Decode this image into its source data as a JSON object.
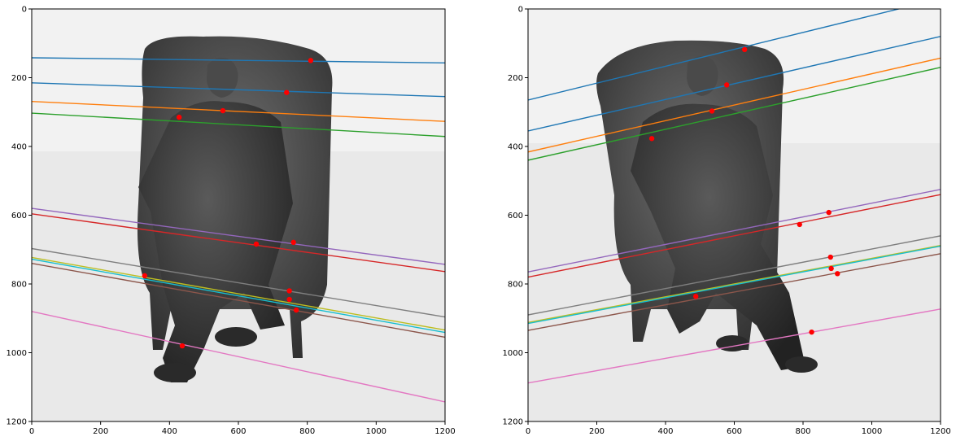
{
  "chart_data": [
    {
      "type": "scatter",
      "subtype": "image-with-epipolar-lines",
      "title": "",
      "xlabel": "",
      "ylabel": "",
      "xlim": [
        0,
        1200
      ],
      "ylim": [
        1200,
        0
      ],
      "xticks": [
        "0",
        "200",
        "400",
        "600",
        "800",
        "1000",
        "1200"
      ],
      "yticks": [
        "0",
        "200",
        "400",
        "600",
        "800",
        "1000",
        "1200"
      ],
      "background_image": "grayscale photo of a figurine seated in a wing-back armchair",
      "grid": false,
      "legend": "none",
      "lines": [
        {
          "color": "#1f77b4",
          "y_at_x0": 142,
          "y_at_x1200": 157
        },
        {
          "color": "#1f77b4",
          "y_at_x0": 215,
          "y_at_x1200": 255
        },
        {
          "color": "#ff7f0e",
          "y_at_x0": 269,
          "y_at_x1200": 327
        },
        {
          "color": "#2ca02c",
          "y_at_x0": 303,
          "y_at_x1200": 371
        },
        {
          "color": "#9467bd",
          "y_at_x0": 580,
          "y_at_x1200": 743
        },
        {
          "color": "#d62728",
          "y_at_x0": 596,
          "y_at_x1200": 764
        },
        {
          "color": "#7f7f7f",
          "y_at_x0": 697,
          "y_at_x1200": 896
        },
        {
          "color": "#bcbd22",
          "y_at_x0": 723,
          "y_at_x1200": 934
        },
        {
          "color": "#17becf",
          "y_at_x0": 728,
          "y_at_x1200": 941
        },
        {
          "color": "#8c564b",
          "y_at_x0": 740,
          "y_at_x1200": 955
        },
        {
          "color": "#e377c2",
          "y_at_x0": 880,
          "y_at_x1200": 1143
        }
      ],
      "points": [
        {
          "x": 810,
          "y": 150
        },
        {
          "x": 740,
          "y": 243
        },
        {
          "x": 428,
          "y": 315
        },
        {
          "x": 555,
          "y": 296
        },
        {
          "x": 652,
          "y": 684
        },
        {
          "x": 760,
          "y": 679
        },
        {
          "x": 328,
          "y": 776
        },
        {
          "x": 748,
          "y": 820
        },
        {
          "x": 748,
          "y": 845
        },
        {
          "x": 768,
          "y": 876
        },
        {
          "x": 437,
          "y": 980
        }
      ]
    },
    {
      "type": "scatter",
      "subtype": "image-with-epipolar-lines",
      "title": "",
      "xlabel": "",
      "ylabel": "",
      "xlim": [
        0,
        1200
      ],
      "ylim": [
        1200,
        0
      ],
      "xticks": [
        "0",
        "200",
        "400",
        "600",
        "800",
        "1000",
        "1200"
      ],
      "yticks": [
        "0",
        "200",
        "400",
        "600",
        "800",
        "1000",
        "1200"
      ],
      "background_image": "grayscale photo of the same figurine seated in a wing-back armchair, rotated view",
      "grid": false,
      "legend": "none",
      "lines": [
        {
          "color": "#1f77b4",
          "y_at_x0": 265,
          "y_at_x1200": -30
        },
        {
          "color": "#1f77b4",
          "y_at_x0": 355,
          "y_at_x1200": 80
        },
        {
          "color": "#ff7f0e",
          "y_at_x0": 416,
          "y_at_x1200": 143
        },
        {
          "color": "#2ca02c",
          "y_at_x0": 440,
          "y_at_x1200": 170
        },
        {
          "color": "#9467bd",
          "y_at_x0": 765,
          "y_at_x1200": 525
        },
        {
          "color": "#d62728",
          "y_at_x0": 780,
          "y_at_x1200": 540
        },
        {
          "color": "#7f7f7f",
          "y_at_x0": 890,
          "y_at_x1200": 660
        },
        {
          "color": "#bcbd22",
          "y_at_x0": 912,
          "y_at_x1200": 688
        },
        {
          "color": "#17becf",
          "y_at_x0": 915,
          "y_at_x1200": 690
        },
        {
          "color": "#8c564b",
          "y_at_x0": 935,
          "y_at_x1200": 712
        },
        {
          "color": "#e377c2",
          "y_at_x0": 1088,
          "y_at_x1200": 873
        }
      ],
      "points": [
        {
          "x": 630,
          "y": 118
        },
        {
          "x": 578,
          "y": 221
        },
        {
          "x": 360,
          "y": 377
        },
        {
          "x": 535,
          "y": 297
        },
        {
          "x": 790,
          "y": 627
        },
        {
          "x": 875,
          "y": 592
        },
        {
          "x": 488,
          "y": 836
        },
        {
          "x": 880,
          "y": 722
        },
        {
          "x": 882,
          "y": 755
        },
        {
          "x": 900,
          "y": 770
        },
        {
          "x": 825,
          "y": 940
        }
      ]
    }
  ]
}
